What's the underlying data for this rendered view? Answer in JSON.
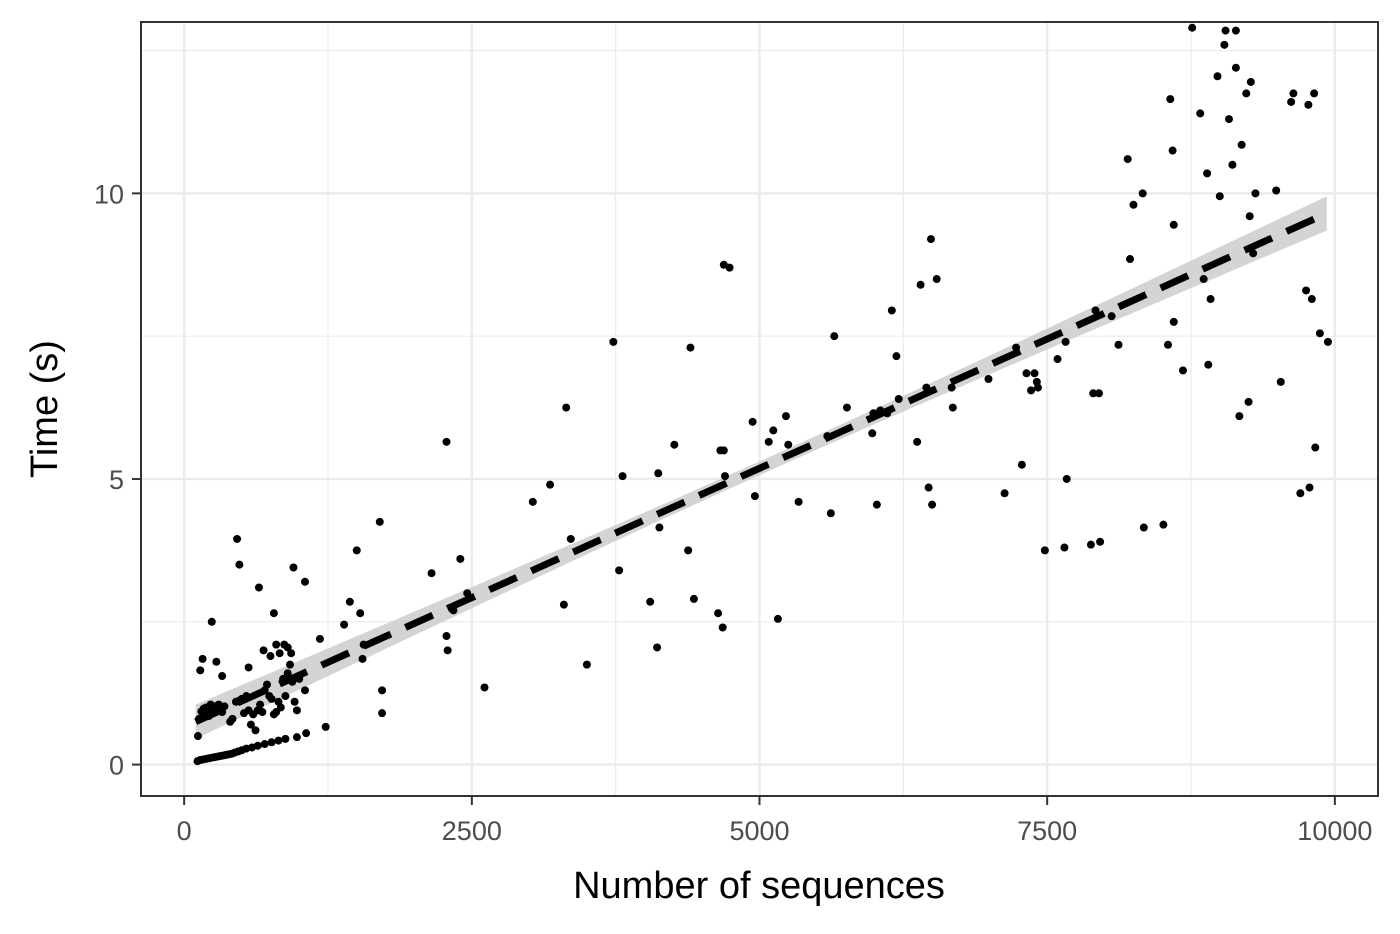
{
  "chart_data": {
    "type": "scatter",
    "title": "",
    "xlabel": "Number of sequences",
    "ylabel": "Time (s)",
    "xlim": [
      -375,
      10375
    ],
    "ylim": [
      -0.55,
      13.0
    ],
    "x_ticks": [
      0,
      2500,
      5000,
      7500,
      10000
    ],
    "x_tick_labels": [
      "0",
      "2500",
      "5000",
      "7500",
      "10000"
    ],
    "y_ticks": [
      0,
      5,
      10
    ],
    "y_tick_labels": [
      "0",
      "5",
      "10"
    ],
    "grid": true,
    "legend": "none",
    "colors": {
      "points": "#000000",
      "fit_line": "#000000",
      "confidence_band": "#cccccc",
      "grid": "#ebebeb",
      "panel_border": "#333333"
    },
    "fit": {
      "method": "linear",
      "line_style": "dashed",
      "x_range": [
        100,
        9930
      ],
      "y_range": [
        0.75,
        9.65
      ],
      "band_halfwidth_ends": [
        0.3,
        0.3
      ],
      "band_halfwidth_center": 0.12
    },
    "points": [
      [
        116,
        0.06
      ],
      [
        140,
        0.08
      ],
      [
        165,
        0.09
      ],
      [
        190,
        0.1
      ],
      [
        215,
        0.11
      ],
      [
        240,
        0.12
      ],
      [
        265,
        0.13
      ],
      [
        290,
        0.14
      ],
      [
        315,
        0.15
      ],
      [
        340,
        0.16
      ],
      [
        365,
        0.17
      ],
      [
        390,
        0.18
      ],
      [
        415,
        0.19
      ],
      [
        440,
        0.21
      ],
      [
        470,
        0.23
      ],
      [
        500,
        0.25
      ],
      [
        540,
        0.28
      ],
      [
        590,
        0.3
      ],
      [
        640,
        0.33
      ],
      [
        700,
        0.36
      ],
      [
        760,
        0.39
      ],
      [
        820,
        0.42
      ],
      [
        880,
        0.45
      ],
      [
        980,
        0.48
      ],
      [
        1060,
        0.55
      ],
      [
        1230,
        0.66
      ],
      [
        120,
        0.5
      ],
      [
        130,
        0.8
      ],
      [
        150,
        0.93
      ],
      [
        170,
        0.98
      ],
      [
        190,
        1.0
      ],
      [
        200,
        0.92
      ],
      [
        215,
        0.85
      ],
      [
        230,
        1.05
      ],
      [
        250,
        0.95
      ],
      [
        270,
        1.02
      ],
      [
        300,
        1.05
      ],
      [
        310,
        0.98
      ],
      [
        330,
        0.92
      ],
      [
        350,
        1.02
      ],
      [
        400,
        0.75
      ],
      [
        420,
        0.8
      ],
      [
        450,
        1.1
      ],
      [
        480,
        1.12
      ],
      [
        500,
        1.15
      ],
      [
        520,
        0.9
      ],
      [
        540,
        1.2
      ],
      [
        560,
        0.95
      ],
      [
        580,
        0.7
      ],
      [
        600,
        0.88
      ],
      [
        620,
        0.6
      ],
      [
        640,
        0.95
      ],
      [
        660,
        1.05
      ],
      [
        680,
        0.92
      ],
      [
        700,
        1.3
      ],
      [
        720,
        1.4
      ],
      [
        740,
        1.2
      ],
      [
        760,
        1.15
      ],
      [
        780,
        0.88
      ],
      [
        800,
        0.92
      ],
      [
        820,
        1.1
      ],
      [
        840,
        1.0
      ],
      [
        860,
        1.5
      ],
      [
        880,
        1.2
      ],
      [
        900,
        1.6
      ],
      [
        920,
        1.75
      ],
      [
        940,
        1.45
      ],
      [
        960,
        1.1
      ],
      [
        980,
        0.95
      ],
      [
        1000,
        1.5
      ],
      [
        1050,
        1.3
      ],
      [
        140,
        1.65
      ],
      [
        160,
        1.85
      ],
      [
        240,
        2.5
      ],
      [
        280,
        1.8
      ],
      [
        330,
        1.55
      ],
      [
        460,
        3.95
      ],
      [
        480,
        3.5
      ],
      [
        560,
        1.7
      ],
      [
        650,
        3.1
      ],
      [
        690,
        2.0
      ],
      [
        750,
        1.9
      ],
      [
        780,
        2.65
      ],
      [
        800,
        2.1
      ],
      [
        830,
        1.95
      ],
      [
        870,
        2.1
      ],
      [
        900,
        2.05
      ],
      [
        930,
        1.95
      ],
      [
        950,
        3.45
      ],
      [
        1050,
        3.2
      ],
      [
        1180,
        2.2
      ],
      [
        1390,
        2.45
      ],
      [
        1440,
        2.85
      ],
      [
        1500,
        3.75
      ],
      [
        1530,
        2.65
      ],
      [
        1560,
        2.1
      ],
      [
        1550,
        1.85
      ],
      [
        1700,
        4.25
      ],
      [
        1720,
        1.3
      ],
      [
        1720,
        0.9
      ],
      [
        2150,
        3.35
      ],
      [
        2280,
        5.65
      ],
      [
        2280,
        2.25
      ],
      [
        2290,
        2.0
      ],
      [
        2340,
        2.7
      ],
      [
        2400,
        3.6
      ],
      [
        2460,
        3.0
      ],
      [
        2610,
        1.35
      ],
      [
        3030,
        4.6
      ],
      [
        3300,
        2.8
      ],
      [
        3320,
        6.25
      ],
      [
        3360,
        3.95
      ],
      [
        3180,
        4.9
      ],
      [
        3500,
        1.75
      ],
      [
        3730,
        7.4
      ],
      [
        3780,
        3.4
      ],
      [
        3810,
        5.05
      ],
      [
        4050,
        2.85
      ],
      [
        4110,
        2.05
      ],
      [
        4120,
        5.1
      ],
      [
        4130,
        4.15
      ],
      [
        4260,
        5.6
      ],
      [
        4380,
        3.75
      ],
      [
        4400,
        7.3
      ],
      [
        4430,
        2.9
      ],
      [
        4640,
        2.65
      ],
      [
        4660,
        5.5
      ],
      [
        4690,
        5.5
      ],
      [
        4680,
        2.4
      ],
      [
        4690,
        8.75
      ],
      [
        4740,
        8.7
      ],
      [
        4700,
        5.05
      ],
      [
        4940,
        6.0
      ],
      [
        4960,
        4.7
      ],
      [
        5080,
        5.65
      ],
      [
        5120,
        5.85
      ],
      [
        5160,
        2.55
      ],
      [
        5230,
        6.1
      ],
      [
        5250,
        5.6
      ],
      [
        5340,
        4.6
      ],
      [
        5590,
        5.75
      ],
      [
        5620,
        4.4
      ],
      [
        5650,
        7.5
      ],
      [
        5760,
        6.25
      ],
      [
        5980,
        5.8
      ],
      [
        5990,
        6.15
      ],
      [
        6020,
        4.55
      ],
      [
        6050,
        6.2
      ],
      [
        6110,
        6.15
      ],
      [
        6150,
        7.95
      ],
      [
        6190,
        7.15
      ],
      [
        6210,
        6.4
      ],
      [
        6370,
        5.65
      ],
      [
        6400,
        8.4
      ],
      [
        6450,
        6.6
      ],
      [
        6470,
        4.85
      ],
      [
        6490,
        9.2
      ],
      [
        6500,
        4.55
      ],
      [
        6540,
        8.5
      ],
      [
        6670,
        6.6
      ],
      [
        6680,
        6.25
      ],
      [
        6990,
        6.75
      ],
      [
        7130,
        4.75
      ],
      [
        7230,
        7.3
      ],
      [
        7280,
        5.25
      ],
      [
        7320,
        6.85
      ],
      [
        7360,
        6.55
      ],
      [
        7390,
        6.85
      ],
      [
        7410,
        6.7
      ],
      [
        7420,
        6.6
      ],
      [
        7480,
        3.75
      ],
      [
        7590,
        7.1
      ],
      [
        7660,
        7.4
      ],
      [
        7650,
        3.8
      ],
      [
        7670,
        5.0
      ],
      [
        7880,
        3.85
      ],
      [
        7900,
        6.5
      ],
      [
        7950,
        6.5
      ],
      [
        7960,
        3.9
      ],
      [
        7920,
        7.95
      ],
      [
        8060,
        7.85
      ],
      [
        8120,
        7.35
      ],
      [
        8200,
        10.6
      ],
      [
        8220,
        8.85
      ],
      [
        8250,
        9.8
      ],
      [
        8330,
        10.0
      ],
      [
        8340,
        4.15
      ],
      [
        8510,
        4.2
      ],
      [
        8550,
        7.35
      ],
      [
        8570,
        11.65
      ],
      [
        8590,
        10.75
      ],
      [
        8600,
        9.45
      ],
      [
        8600,
        7.75
      ],
      [
        8680,
        6.9
      ],
      [
        8760,
        12.9
      ],
      [
        8830,
        11.4
      ],
      [
        8860,
        8.5
      ],
      [
        8890,
        10.35
      ],
      [
        8900,
        7.0
      ],
      [
        8920,
        8.15
      ],
      [
        8980,
        12.05
      ],
      [
        9000,
        9.95
      ],
      [
        9040,
        12.6
      ],
      [
        9050,
        12.85
      ],
      [
        9080,
        11.3
      ],
      [
        9110,
        10.5
      ],
      [
        9140,
        12.85
      ],
      [
        9140,
        12.2
      ],
      [
        9170,
        6.1
      ],
      [
        9190,
        10.85
      ],
      [
        9230,
        11.75
      ],
      [
        9250,
        6.35
      ],
      [
        9260,
        9.6
      ],
      [
        9270,
        11.95
      ],
      [
        9290,
        8.95
      ],
      [
        9310,
        10.0
      ],
      [
        9490,
        10.05
      ],
      [
        9530,
        6.7
      ],
      [
        9620,
        11.6
      ],
      [
        9640,
        11.75
      ],
      [
        9700,
        4.75
      ],
      [
        9750,
        8.3
      ],
      [
        9770,
        11.55
      ],
      [
        9780,
        4.85
      ],
      [
        9800,
        8.15
      ],
      [
        9820,
        11.75
      ],
      [
        9830,
        5.55
      ],
      [
        9870,
        7.55
      ],
      [
        9940,
        7.4
      ]
    ]
  }
}
